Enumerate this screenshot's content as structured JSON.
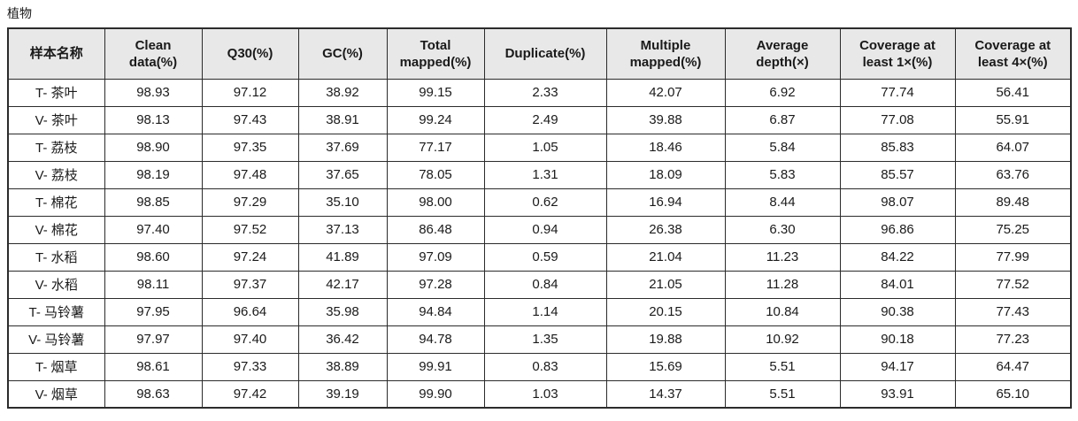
{
  "page_title": "植物",
  "colors": {
    "header_bg": "#e8e8e8",
    "border": "#2b2b2b",
    "text": "#1a1a1a"
  },
  "table": {
    "columns": [
      "样本名称",
      "Clean data(%)",
      "Q30(%)",
      "GC(%)",
      "Total mapped(%)",
      "Duplicate(%)",
      "Multiple mapped(%)",
      "Average depth(×)",
      "Coverage at least 1×(%)",
      "Coverage at least 4×(%)"
    ],
    "rows": [
      [
        "T- 茶叶",
        "98.93",
        "97.12",
        "38.92",
        "99.15",
        "2.33",
        "42.07",
        "6.92",
        "77.74",
        "56.41"
      ],
      [
        "V- 茶叶",
        "98.13",
        "97.43",
        "38.91",
        "99.24",
        "2.49",
        "39.88",
        "6.87",
        "77.08",
        "55.91"
      ],
      [
        "T- 荔枝",
        "98.90",
        "97.35",
        "37.69",
        "77.17",
        "1.05",
        "18.46",
        "5.84",
        "85.83",
        "64.07"
      ],
      [
        "V- 荔枝",
        "98.19",
        "97.48",
        "37.65",
        "78.05",
        "1.31",
        "18.09",
        "5.83",
        "85.57",
        "63.76"
      ],
      [
        "T- 棉花",
        "98.85",
        "97.29",
        "35.10",
        "98.00",
        "0.62",
        "16.94",
        "8.44",
        "98.07",
        "89.48"
      ],
      [
        "V- 棉花",
        "97.40",
        "97.52",
        "37.13",
        "86.48",
        "0.94",
        "26.38",
        "6.30",
        "96.86",
        "75.25"
      ],
      [
        "T- 水稻",
        "98.60",
        "97.24",
        "41.89",
        "97.09",
        "0.59",
        "21.04",
        "11.23",
        "84.22",
        "77.99"
      ],
      [
        "V- 水稻",
        "98.11",
        "97.37",
        "42.17",
        "97.28",
        "0.84",
        "21.05",
        "11.28",
        "84.01",
        "77.52"
      ],
      [
        "T- 马铃薯",
        "97.95",
        "96.64",
        "35.98",
        "94.84",
        "1.14",
        "20.15",
        "10.84",
        "90.38",
        "77.43"
      ],
      [
        "V- 马铃薯",
        "97.97",
        "97.40",
        "36.42",
        "94.78",
        "1.35",
        "19.88",
        "10.92",
        "90.18",
        "77.23"
      ],
      [
        "T- 烟草",
        "98.61",
        "97.33",
        "38.89",
        "99.91",
        "0.83",
        "15.69",
        "5.51",
        "94.17",
        "64.47"
      ],
      [
        "V- 烟草",
        "98.63",
        "97.42",
        "39.19",
        "99.90",
        "1.03",
        "14.37",
        "5.51",
        "93.91",
        "65.10"
      ]
    ]
  }
}
